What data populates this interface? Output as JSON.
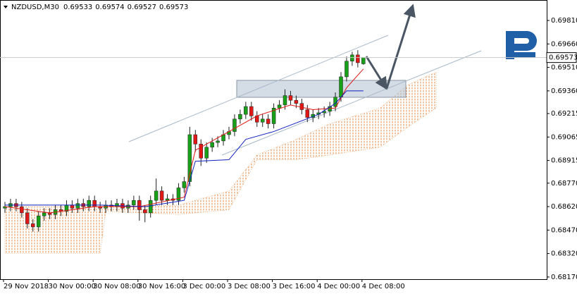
{
  "chart_data": {
    "type": "candlestick",
    "title": "NZDUSD,M30",
    "categories": [
      "29 Nov 2018",
      null,
      null,
      null,
      null,
      null,
      null,
      null,
      "30 Nov 00:00",
      null,
      null,
      null,
      null,
      null,
      null,
      null,
      "30 Nov 08:00",
      null,
      null,
      null,
      null,
      null,
      null,
      null,
      "30 Nov 16:00",
      null,
      null,
      null,
      null,
      null,
      null,
      null,
      "3 Dec 00:00",
      null,
      null,
      null,
      null,
      null,
      null,
      null,
      "3 Dec 08:00",
      null,
      null,
      null,
      null,
      null,
      null,
      null,
      "3 Dec 16:00",
      null,
      null,
      null,
      null,
      null,
      null,
      null,
      "4 Dec 00:00",
      null,
      null,
      null,
      null,
      null,
      null,
      null,
      "4 Dec 08:00"
    ],
    "open": [
      0.6861,
      0.6862,
      0.6864,
      0.6862,
      0.6858,
      0.6851,
      0.6849,
      0.6856,
      0.6858,
      0.6857,
      0.686,
      0.6859,
      0.6863,
      0.6861,
      0.6864,
      0.6862,
      0.6866,
      0.6862,
      0.6861,
      0.6863,
      0.6862,
      0.6864,
      0.6861,
      0.6863,
      0.6866,
      0.686,
      0.6858,
      0.6866,
      0.6872,
      0.6866,
      0.6867,
      0.6866,
      0.6874,
      0.6878,
      0.6908,
      0.6902,
      0.6893,
      0.69,
      0.6903,
      0.6904,
      0.6908,
      0.691,
      0.6918,
      0.6921,
      0.6926,
      0.692,
      0.6916,
      0.6918,
      0.6915,
      0.6925,
      0.6927,
      0.6933,
      0.693,
      0.6928,
      0.6924,
      0.6919,
      0.6921,
      0.6922,
      0.6923,
      0.6926,
      0.6932,
      0.6945,
      0.6955,
      0.6959,
      0.69533
    ],
    "high": [
      0.6865,
      0.6867,
      0.6867,
      0.6865,
      0.6861,
      0.6854,
      0.6859,
      0.6861,
      0.6861,
      0.6863,
      0.6863,
      0.6866,
      0.6866,
      0.6867,
      0.6867,
      0.6869,
      0.6869,
      0.6865,
      0.6866,
      0.6866,
      0.6867,
      0.6867,
      0.6866,
      0.6869,
      0.6869,
      0.6863,
      0.6869,
      0.688,
      0.6875,
      0.687,
      0.687,
      0.6877,
      0.6881,
      0.6913,
      0.6911,
      0.6905,
      0.6903,
      0.6906,
      0.6907,
      0.6911,
      0.6913,
      0.6921,
      0.6924,
      0.6929,
      0.6929,
      0.6923,
      0.6921,
      0.6921,
      0.6928,
      0.693,
      0.6937,
      0.6936,
      0.6933,
      0.6931,
      0.6927,
      0.6924,
      0.6925,
      0.6926,
      0.6929,
      0.6935,
      0.6948,
      0.6958,
      0.6961,
      0.6962,
      0.69574
    ],
    "low": [
      0.6858,
      0.6859,
      0.6859,
      0.6855,
      0.6848,
      0.6846,
      0.6846,
      0.6853,
      0.6854,
      0.6854,
      0.6856,
      0.6856,
      0.6858,
      0.6858,
      0.6859,
      0.6859,
      0.6859,
      0.6858,
      0.6858,
      0.6859,
      0.6859,
      0.6858,
      0.6858,
      0.686,
      0.6853,
      0.6852,
      0.6855,
      0.6863,
      0.6863,
      0.6863,
      0.6863,
      0.6863,
      0.6871,
      0.6875,
      0.6897,
      0.6888,
      0.689,
      0.6897,
      0.69,
      0.6901,
      0.6905,
      0.6907,
      0.6915,
      0.6918,
      0.6917,
      0.6913,
      0.6913,
      0.6912,
      0.6912,
      0.6922,
      0.6924,
      0.6927,
      0.6925,
      0.6921,
      0.6916,
      0.6916,
      0.6918,
      0.6919,
      0.692,
      0.6923,
      0.6929,
      0.6942,
      0.6952,
      0.6951,
      0.69527
    ],
    "close": [
      0.6862,
      0.6864,
      0.6862,
      0.6858,
      0.6851,
      0.6849,
      0.6856,
      0.6858,
      0.6857,
      0.686,
      0.6859,
      0.6863,
      0.6861,
      0.6864,
      0.6862,
      0.6866,
      0.6862,
      0.6861,
      0.6863,
      0.6862,
      0.6864,
      0.6861,
      0.6863,
      0.6866,
      0.686,
      0.6858,
      0.6866,
      0.6872,
      0.6866,
      0.6867,
      0.6866,
      0.6874,
      0.6878,
      0.6908,
      0.6902,
      0.6893,
      0.69,
      0.6903,
      0.6904,
      0.6908,
      0.691,
      0.6918,
      0.6921,
      0.6926,
      0.692,
      0.6916,
      0.6918,
      0.6915,
      0.6925,
      0.6927,
      0.6933,
      0.693,
      0.6928,
      0.6924,
      0.6919,
      0.6921,
      0.6922,
      0.6923,
      0.6926,
      0.6932,
      0.6945,
      0.6955,
      0.6959,
      0.6954,
      0.69573
    ],
    "up_color": "#18a018",
    "down_color": "#e01818",
    "lines": [
      {
        "color": "#e01818",
        "x": [
          0,
          8,
          16,
          24,
          32,
          34,
          41,
          45,
          51,
          55,
          59,
          61,
          64
        ],
        "values": [
          0.6862,
          0.6858,
          0.6862,
          0.6862,
          0.6868,
          0.6898,
          0.6912,
          0.692,
          0.6927,
          0.6924,
          0.6925,
          0.6938,
          0.695
        ]
      },
      {
        "color": "#1020c0",
        "x": [
          0,
          17,
          25,
          32,
          34,
          40,
          43,
          48,
          56,
          59,
          61,
          64
        ],
        "values": [
          0.6863,
          0.6863,
          0.6862,
          0.6866,
          0.6891,
          0.6892,
          0.6905,
          0.691,
          0.6921,
          0.6928,
          0.6936,
          0.6936
        ]
      }
    ],
    "cloud": {
      "color": "#e08a40",
      "x": [
        0,
        17,
        18,
        31,
        40,
        45,
        52,
        58,
        67,
        72,
        77
      ],
      "upper": [
        0.6862,
        0.6862,
        0.6862,
        0.6863,
        0.6872,
        0.6895,
        0.6905,
        0.6915,
        0.6925,
        0.694,
        0.6948
      ],
      "lower": [
        0.6832,
        0.6832,
        0.6859,
        0.6857,
        0.686,
        0.6892,
        0.6892,
        0.6895,
        0.69,
        0.6913,
        0.6925
      ]
    },
    "ylim": [
      0.68156,
      0.69941
    ],
    "yticks": [
      {
        "value": 0.6981,
        "label": "0.69810"
      },
      {
        "value": 0.6966,
        "label": "0.69660"
      },
      {
        "value": 0.6951,
        "label": "0.69510"
      },
      {
        "value": 0.6936,
        "label": "0.69360"
      },
      {
        "value": 0.69215,
        "label": "0.69215"
      },
      {
        "value": 0.69065,
        "label": "0.69065"
      },
      {
        "value": 0.68915,
        "label": "0.68915"
      },
      {
        "value": 0.6877,
        "label": "0.68770"
      },
      {
        "value": 0.6862,
        "label": "0.68620"
      },
      {
        "value": 0.6847,
        "label": "0.68470"
      },
      {
        "value": 0.6832,
        "label": "0.68320"
      },
      {
        "value": 0.6817,
        "label": "0.68170"
      }
    ],
    "grid": false
  }
}
